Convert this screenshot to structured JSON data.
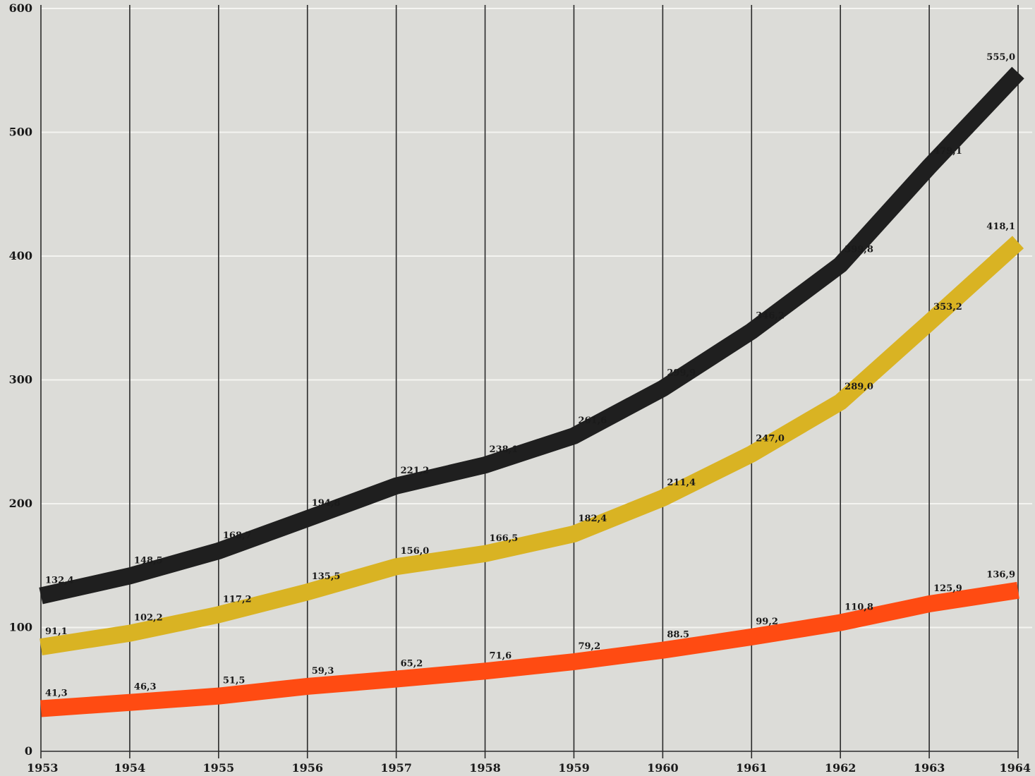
{
  "chart_data": {
    "type": "line",
    "title": "",
    "xlabel": "",
    "ylabel": "",
    "x": [
      "1953",
      "1954",
      "1955",
      "1956",
      "1957",
      "1958",
      "1959",
      "1960",
      "1961",
      "1962",
      "1963",
      "1964"
    ],
    "ylim": [
      0,
      600
    ],
    "yticks": [
      "0",
      "100",
      "200",
      "300",
      "400",
      "500",
      "600"
    ],
    "grid": "vertical lines at each year, horizontal lines at each 100",
    "legend": "none",
    "series": [
      {
        "color": "#1f1f1f",
        "values": [
          132.4,
          148.5,
          168.7,
          194.8,
          221.2,
          238.1,
          261.6,
          299.9,
          346.2,
          399.8,
          479.1,
          555.0
        ],
        "labels": [
          "132,4",
          "148,5",
          "168,7",
          "194,8",
          "221,2",
          "238,1",
          "261,6",
          "299,9",
          "346,2",
          "399,8",
          "479,1",
          "555,0"
        ]
      },
      {
        "color": "#d9b323",
        "values": [
          91.1,
          102.2,
          117.2,
          135.5,
          156.0,
          166.5,
          182.4,
          211.4,
          247.0,
          289.0,
          353.2,
          418.1
        ],
        "labels": [
          "91,1",
          "102,2",
          "117,2",
          "135,5",
          "156,0",
          "166,5",
          "182,4",
          "211,4",
          "247,0",
          "289,0",
          "353,2",
          "418,1"
        ]
      },
      {
        "color": "#ff4b12",
        "values": [
          41.3,
          46.3,
          51.5,
          59.3,
          65.2,
          71.6,
          79.2,
          88.5,
          99.2,
          110.8,
          125.9,
          136.9
        ],
        "labels": [
          "41,3",
          "46,3",
          "51,5",
          "59,3",
          "65,2",
          "71,6",
          "79,2",
          "88.5",
          "99,2",
          "110,8",
          "125,9",
          "136,9"
        ]
      }
    ]
  }
}
